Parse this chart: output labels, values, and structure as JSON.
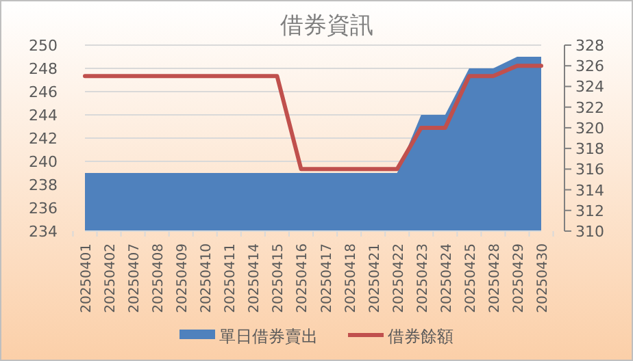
{
  "chart_data": {
    "type": "area",
    "title": "借券資訊",
    "categories": [
      "20250401",
      "20250402",
      "20250407",
      "20250408",
      "20250409",
      "20250410",
      "20250411",
      "20250414",
      "20250415",
      "20250416",
      "20250417",
      "20250418",
      "20250421",
      "20250422",
      "20250423",
      "20250424",
      "20250425",
      "20250428",
      "20250429",
      "20250430"
    ],
    "series": [
      {
        "name": "單日借券賣出",
        "color": "#4f81bd",
        "values": [
          239,
          239,
          239,
          239,
          239,
          239,
          239,
          239,
          239,
          239,
          239,
          239,
          239,
          239,
          244,
          244,
          248,
          248,
          249,
          249
        ]
      },
      {
        "name": "借券餘額",
        "type": "line",
        "axis": "y2",
        "color": "#c0504d",
        "values": [
          325,
          325,
          325,
          325,
          325,
          325,
          325,
          325,
          325,
          316,
          316,
          316,
          316,
          316,
          320,
          320,
          325,
          325,
          326,
          326
        ]
      }
    ],
    "ylim": [
      234,
      250
    ],
    "yticks": [
      234,
      236,
      238,
      240,
      242,
      244,
      246,
      248,
      250
    ],
    "y2lim": [
      310,
      328
    ],
    "y2ticks": [
      310,
      312,
      314,
      316,
      318,
      320,
      322,
      324,
      326,
      328
    ],
    "grid": "y",
    "legend": "bottom"
  }
}
